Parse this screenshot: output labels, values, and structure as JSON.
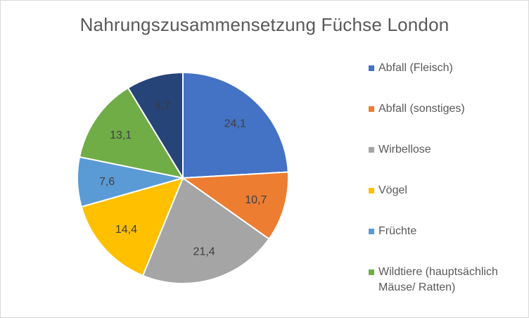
{
  "chart_data": {
    "type": "pie",
    "title": "Nahrungszusammensetzung  Füchse London",
    "legend_position": "right",
    "slices": [
      {
        "label": "Abfall (Fleisch)",
        "value": 24.1,
        "value_label": "24,1",
        "color": "#4472c4",
        "label_color": "#404040"
      },
      {
        "label": "Abfall (sonstiges)",
        "value": 10.7,
        "value_label": "10,7",
        "color": "#ed7d31",
        "label_color": "#404040"
      },
      {
        "label": "Wirbellose",
        "value": 21.4,
        "value_label": "21,4",
        "color": "#a5a5a5",
        "label_color": "#404040"
      },
      {
        "label": "Vögel",
        "value": 14.4,
        "value_label": "14,4",
        "color": "#ffc000",
        "label_color": "#404040"
      },
      {
        "label": "Früchte",
        "value": 7.6,
        "value_label": "7,6",
        "color": "#5b9bd5",
        "label_color": "#404040"
      },
      {
        "label": "Wildtiere (hauptsächlich Mäuse/ Ratten)",
        "value": 13.1,
        "value_label": "13,1",
        "color": "#70ad47",
        "label_color": "#404040"
      },
      {
        "label": "",
        "value": 8.7,
        "value_label": "8,7",
        "color": "#264478",
        "label_color": "#3b3b3b"
      }
    ]
  }
}
